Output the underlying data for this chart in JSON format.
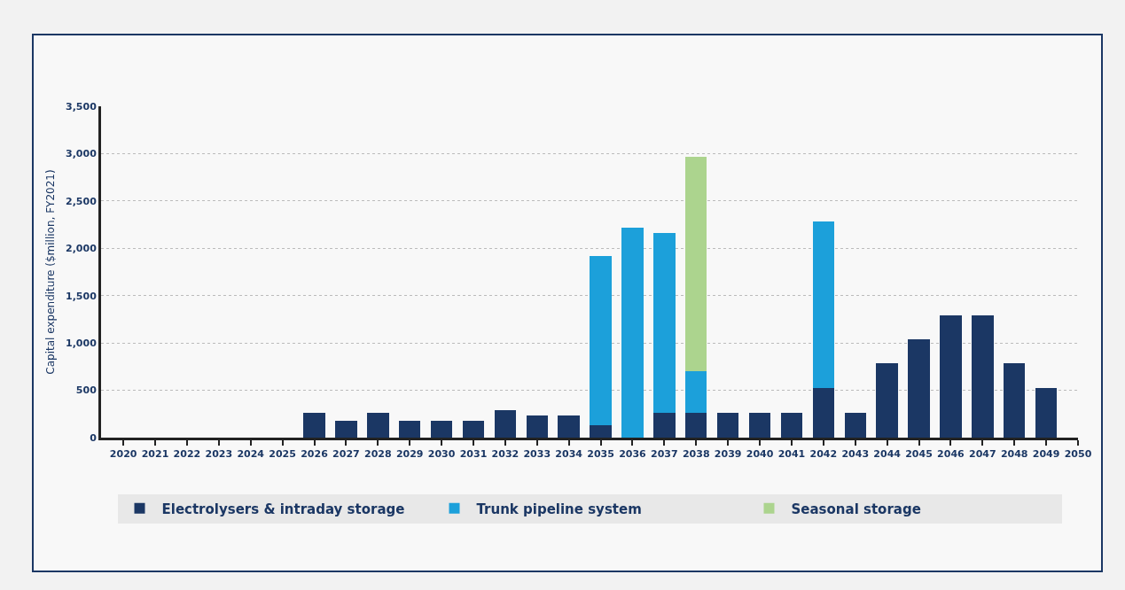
{
  "chart_data": {
    "type": "bar",
    "stacked": true,
    "ylabel": "Capital expenditure ($million, FY2021)",
    "categories": [
      "2020",
      "2021",
      "2022",
      "2023",
      "2024",
      "2025",
      "2026",
      "2027",
      "2028",
      "2029",
      "2030",
      "2031",
      "2032",
      "2033",
      "2034",
      "2035",
      "2036",
      "2037",
      "2038",
      "2039",
      "2040",
      "2041",
      "2042",
      "2043",
      "2044",
      "2045",
      "2046",
      "2047",
      "2048",
      "2049",
      "2050"
    ],
    "series": [
      {
        "name": "Electrolysers & intraday storage",
        "color": "#1b3764",
        "values": [
          null,
          null,
          null,
          null,
          null,
          null,
          260,
          180,
          260,
          180,
          180,
          180,
          290,
          230,
          230,
          130,
          null,
          260,
          260,
          260,
          260,
          260,
          520,
          260,
          790,
          1040,
          1290,
          1290,
          790,
          520,
          null
        ]
      },
      {
        "name": "Trunk pipeline system",
        "color": "#1ca0da",
        "values": [
          null,
          null,
          null,
          null,
          null,
          null,
          null,
          null,
          null,
          null,
          null,
          null,
          null,
          null,
          null,
          1790,
          2220,
          1900,
          440,
          null,
          null,
          null,
          1760,
          null,
          null,
          null,
          null,
          null,
          null,
          null,
          null
        ]
      },
      {
        "name": "Seasonal storage",
        "color": "#acd48e",
        "values": [
          null,
          null,
          null,
          null,
          null,
          null,
          null,
          null,
          null,
          null,
          null,
          null,
          null,
          null,
          null,
          null,
          null,
          null,
          2270,
          null,
          null,
          null,
          null,
          null,
          null,
          null,
          null,
          null,
          null,
          null,
          null
        ]
      }
    ],
    "ylim": [
      0,
      3500
    ],
    "yticks": [
      {
        "value": 0,
        "label": "0"
      },
      {
        "value": 500,
        "label": "500"
      },
      {
        "value": 1000,
        "label": "1,000"
      },
      {
        "value": 1500,
        "label": "1,500"
      },
      {
        "value": 2000,
        "label": "2,000"
      },
      {
        "value": 2500,
        "label": "2,500"
      },
      {
        "value": 3000,
        "label": "3,000"
      },
      {
        "value": 3500,
        "label": "3,500"
      }
    ],
    "grid": "y",
    "legend": "bottom"
  }
}
